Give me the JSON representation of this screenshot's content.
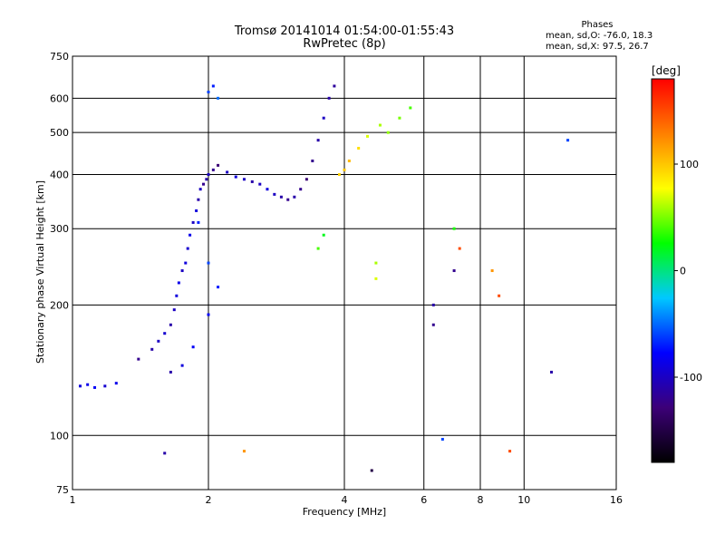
{
  "header": {
    "title": "Tromsø 20141014 01:54:00-01:55:43",
    "subtitle": "RwPretec (8p)"
  },
  "phase_stats": {
    "heading": "Phases",
    "o_line": "mean, sd,O: -76.0, 18.3",
    "x_line": "mean, sd,X:  97.5, 26.7"
  },
  "chart_data": {
    "type": "scatter",
    "title": "Tromsø 20141014 01:54:00-01:55:43",
    "subtitle": "RwPretec (8p)",
    "xlabel": "Frequency [MHz]",
    "ylabel": "Stationary phase Virtual Height [km]",
    "x_scale": "log",
    "y_scale": "log",
    "xlim": [
      1,
      16
    ],
    "ylim": [
      75,
      750
    ],
    "x_ticks": [
      1,
      2,
      4,
      6,
      8,
      10,
      16
    ],
    "y_ticks": [
      75,
      100,
      200,
      300,
      400,
      500,
      600,
      750
    ],
    "x_grid": [
      2,
      4,
      6,
      8,
      10
    ],
    "y_grid": [
      100,
      200,
      300,
      400,
      500,
      600
    ],
    "grid": true,
    "colorbar": {
      "label": "[deg]",
      "range": [
        -180,
        180
      ],
      "ticks": [
        -100,
        0,
        100
      ],
      "colors": [
        "#000000",
        "#3c0078",
        "#0000ff",
        "#00c8ff",
        "#00ff00",
        "#ffff00",
        "#ff8000",
        "#ff0000"
      ]
    },
    "series": [
      {
        "values": [
          [
            1.04,
            130,
            -90
          ],
          [
            1.08,
            131,
            -85
          ],
          [
            1.12,
            129,
            -80
          ],
          [
            1.18,
            130,
            -95
          ],
          [
            1.25,
            132,
            -85
          ],
          [
            1.4,
            150,
            -120
          ],
          [
            1.5,
            158,
            -110
          ],
          [
            1.55,
            165,
            -100
          ],
          [
            1.6,
            172,
            -95
          ],
          [
            1.65,
            180,
            -110
          ],
          [
            1.68,
            195,
            -100
          ],
          [
            1.7,
            210,
            -90
          ],
          [
            1.72,
            225,
            -85
          ],
          [
            1.75,
            240,
            -100
          ],
          [
            1.78,
            250,
            -90
          ],
          [
            1.8,
            270,
            -95
          ],
          [
            1.82,
            290,
            -85
          ],
          [
            1.85,
            310,
            -100
          ],
          [
            1.88,
            330,
            -90
          ],
          [
            1.9,
            350,
            -110
          ],
          [
            1.92,
            370,
            -100
          ],
          [
            1.95,
            380,
            -120
          ],
          [
            1.98,
            390,
            -110
          ],
          [
            2.0,
            400,
            -100
          ],
          [
            2.05,
            410,
            -120
          ],
          [
            2.1,
            420,
            -130
          ],
          [
            2.2,
            405,
            -100
          ],
          [
            2.3,
            395,
            -90
          ],
          [
            2.4,
            390,
            -100
          ],
          [
            2.5,
            385,
            -110
          ],
          [
            2.6,
            380,
            -100
          ],
          [
            2.7,
            370,
            -90
          ],
          [
            2.8,
            360,
            -100
          ],
          [
            2.9,
            355,
            -110
          ],
          [
            3.0,
            350,
            -120
          ],
          [
            3.1,
            355,
            -110
          ],
          [
            3.2,
            370,
            -120
          ],
          [
            3.3,
            390,
            -130
          ],
          [
            3.4,
            430,
            -120
          ],
          [
            3.5,
            480,
            -110
          ],
          [
            3.6,
            540,
            -100
          ],
          [
            3.7,
            600,
            -110
          ],
          [
            3.8,
            640,
            -115
          ],
          [
            3.9,
            400,
            95
          ],
          [
            4.0,
            410,
            100
          ],
          [
            4.1,
            430,
            105
          ],
          [
            4.3,
            460,
            90
          ],
          [
            4.5,
            490,
            70
          ],
          [
            4.8,
            520,
            60
          ],
          [
            5.0,
            500,
            55
          ],
          [
            5.3,
            540,
            50
          ],
          [
            5.6,
            570,
            40
          ],
          [
            2.0,
            620,
            -60
          ],
          [
            2.05,
            640,
            -70
          ],
          [
            2.1,
            600,
            -50
          ],
          [
            1.9,
            310,
            -70
          ],
          [
            2.0,
            250,
            -60
          ],
          [
            2.1,
            220,
            -70
          ],
          [
            2.0,
            190,
            -80
          ],
          [
            1.85,
            160,
            -80
          ],
          [
            1.75,
            145,
            -90
          ],
          [
            1.65,
            140,
            -110
          ],
          [
            3.6,
            290,
            20
          ],
          [
            3.5,
            270,
            40
          ],
          [
            4.7,
            250,
            60
          ],
          [
            4.7,
            230,
            70
          ],
          [
            6.3,
            200,
            -110
          ],
          [
            6.3,
            180,
            -120
          ],
          [
            7.0,
            300,
            30
          ],
          [
            7.0,
            240,
            -120
          ],
          [
            7.2,
            270,
            150
          ],
          [
            8.5,
            240,
            120
          ],
          [
            8.8,
            210,
            150
          ],
          [
            4.6,
            83,
            -150
          ],
          [
            6.6,
            98,
            -60
          ],
          [
            9.3,
            92,
            150
          ],
          [
            2.4,
            92,
            120
          ],
          [
            1.6,
            91,
            -110
          ],
          [
            12.5,
            480,
            -60
          ],
          [
            11.5,
            140,
            -110
          ]
        ]
      }
    ]
  }
}
